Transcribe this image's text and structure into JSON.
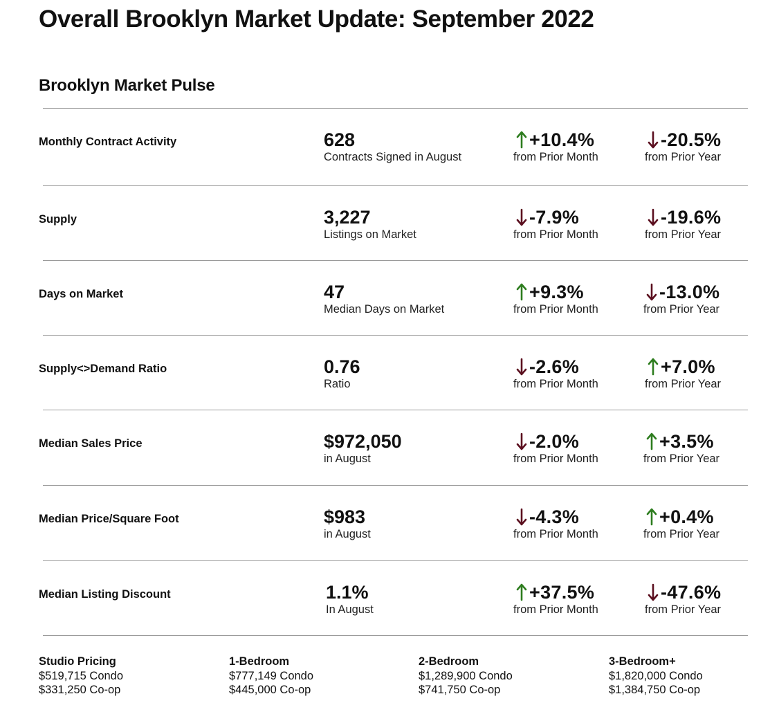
{
  "page_title": "Overall Brooklyn Market Update: September 2022",
  "section_title": "Brooklyn Market Pulse",
  "colors": {
    "up": "#2e7d1f",
    "down": "#5b0f1f",
    "rule": "#9a9a9a"
  },
  "rows": [
    {
      "label": "Monthly Contract Activity",
      "value": "628",
      "value_sub": "Contracts Signed  in August",
      "month": {
        "dir": "up",
        "icon": "arrow-up-icon",
        "pct": "+10.4%",
        "sub": "from Prior Month"
      },
      "year": {
        "dir": "down",
        "icon": "arrow-down-icon",
        "pct": "-20.5%",
        "sub": "from Prior Year"
      }
    },
    {
      "label": "Supply",
      "value": "3,227",
      "value_sub": "Listings on Market",
      "month": {
        "dir": "down",
        "icon": "arrow-down-icon",
        "pct": "-7.9%",
        "sub": "from Prior Month"
      },
      "year": {
        "dir": "down",
        "icon": "arrow-down-icon",
        "pct": "-19.6%",
        "sub": "from Prior Year"
      }
    },
    {
      "label": "Days on Market",
      "value": "47",
      "value_sub": "Median Days on Market",
      "month": {
        "dir": "up",
        "icon": "arrow-up-icon",
        "pct": "+9.3%",
        "sub": "from Prior Month"
      },
      "year": {
        "dir": "down",
        "icon": "arrow-down-icon",
        "pct": "-13.0%",
        "sub": "from Prior Year"
      }
    },
    {
      "label": "Supply<>Demand Ratio",
      "value": "0.76",
      "value_sub": "Ratio",
      "month": {
        "dir": "down",
        "icon": "arrow-down-icon",
        "pct": "-2.6%",
        "sub": "from Prior Month"
      },
      "year": {
        "dir": "up",
        "icon": "arrow-up-icon",
        "pct": "+7.0%",
        "sub": "from Prior Year"
      }
    },
    {
      "label": "Median Sales Price",
      "value": "$972,050",
      "value_sub": "in August",
      "month": {
        "dir": "down",
        "icon": "arrow-down-icon",
        "pct": "-2.0%",
        "sub": "from Prior Month"
      },
      "year": {
        "dir": "up",
        "icon": "arrow-up-icon",
        "pct": "+3.5%",
        "sub": "from Prior Year"
      }
    },
    {
      "label": "Median Price/Square Foot",
      "value": "$983",
      "value_sub": "in August",
      "month": {
        "dir": "down",
        "icon": "arrow-down-icon",
        "pct": "-4.3%",
        "sub": "from Prior Month"
      },
      "year": {
        "dir": "up",
        "icon": "arrow-up-icon",
        "pct": "+0.4%",
        "sub": "from Prior Year"
      }
    },
    {
      "label": "Median Listing Discount",
      "value": "1.1%",
      "value_sub": "In August",
      "month": {
        "dir": "up",
        "icon": "arrow-up-icon",
        "pct": "+37.5%",
        "sub": "from Prior Month"
      },
      "year": {
        "dir": "down",
        "icon": "arrow-down-icon",
        "pct": "-47.6%",
        "sub": "from Prior Year"
      }
    }
  ],
  "pricing": [
    {
      "heading": "Studio Pricing",
      "condo": "$519,715 Condo",
      "coop": "$331,250 Co-op"
    },
    {
      "heading": "1-Bedroom",
      "condo": "$777,149 Condo",
      "coop": "$445,000 Co-op"
    },
    {
      "heading": "2-Bedroom",
      "condo": "$1,289,900 Condo",
      "coop": "$741,750 Co-op"
    },
    {
      "heading": "3-Bedroom+",
      "condo": "$1,820,000 Condo",
      "coop": "$1,384,750 Co-op"
    }
  ]
}
